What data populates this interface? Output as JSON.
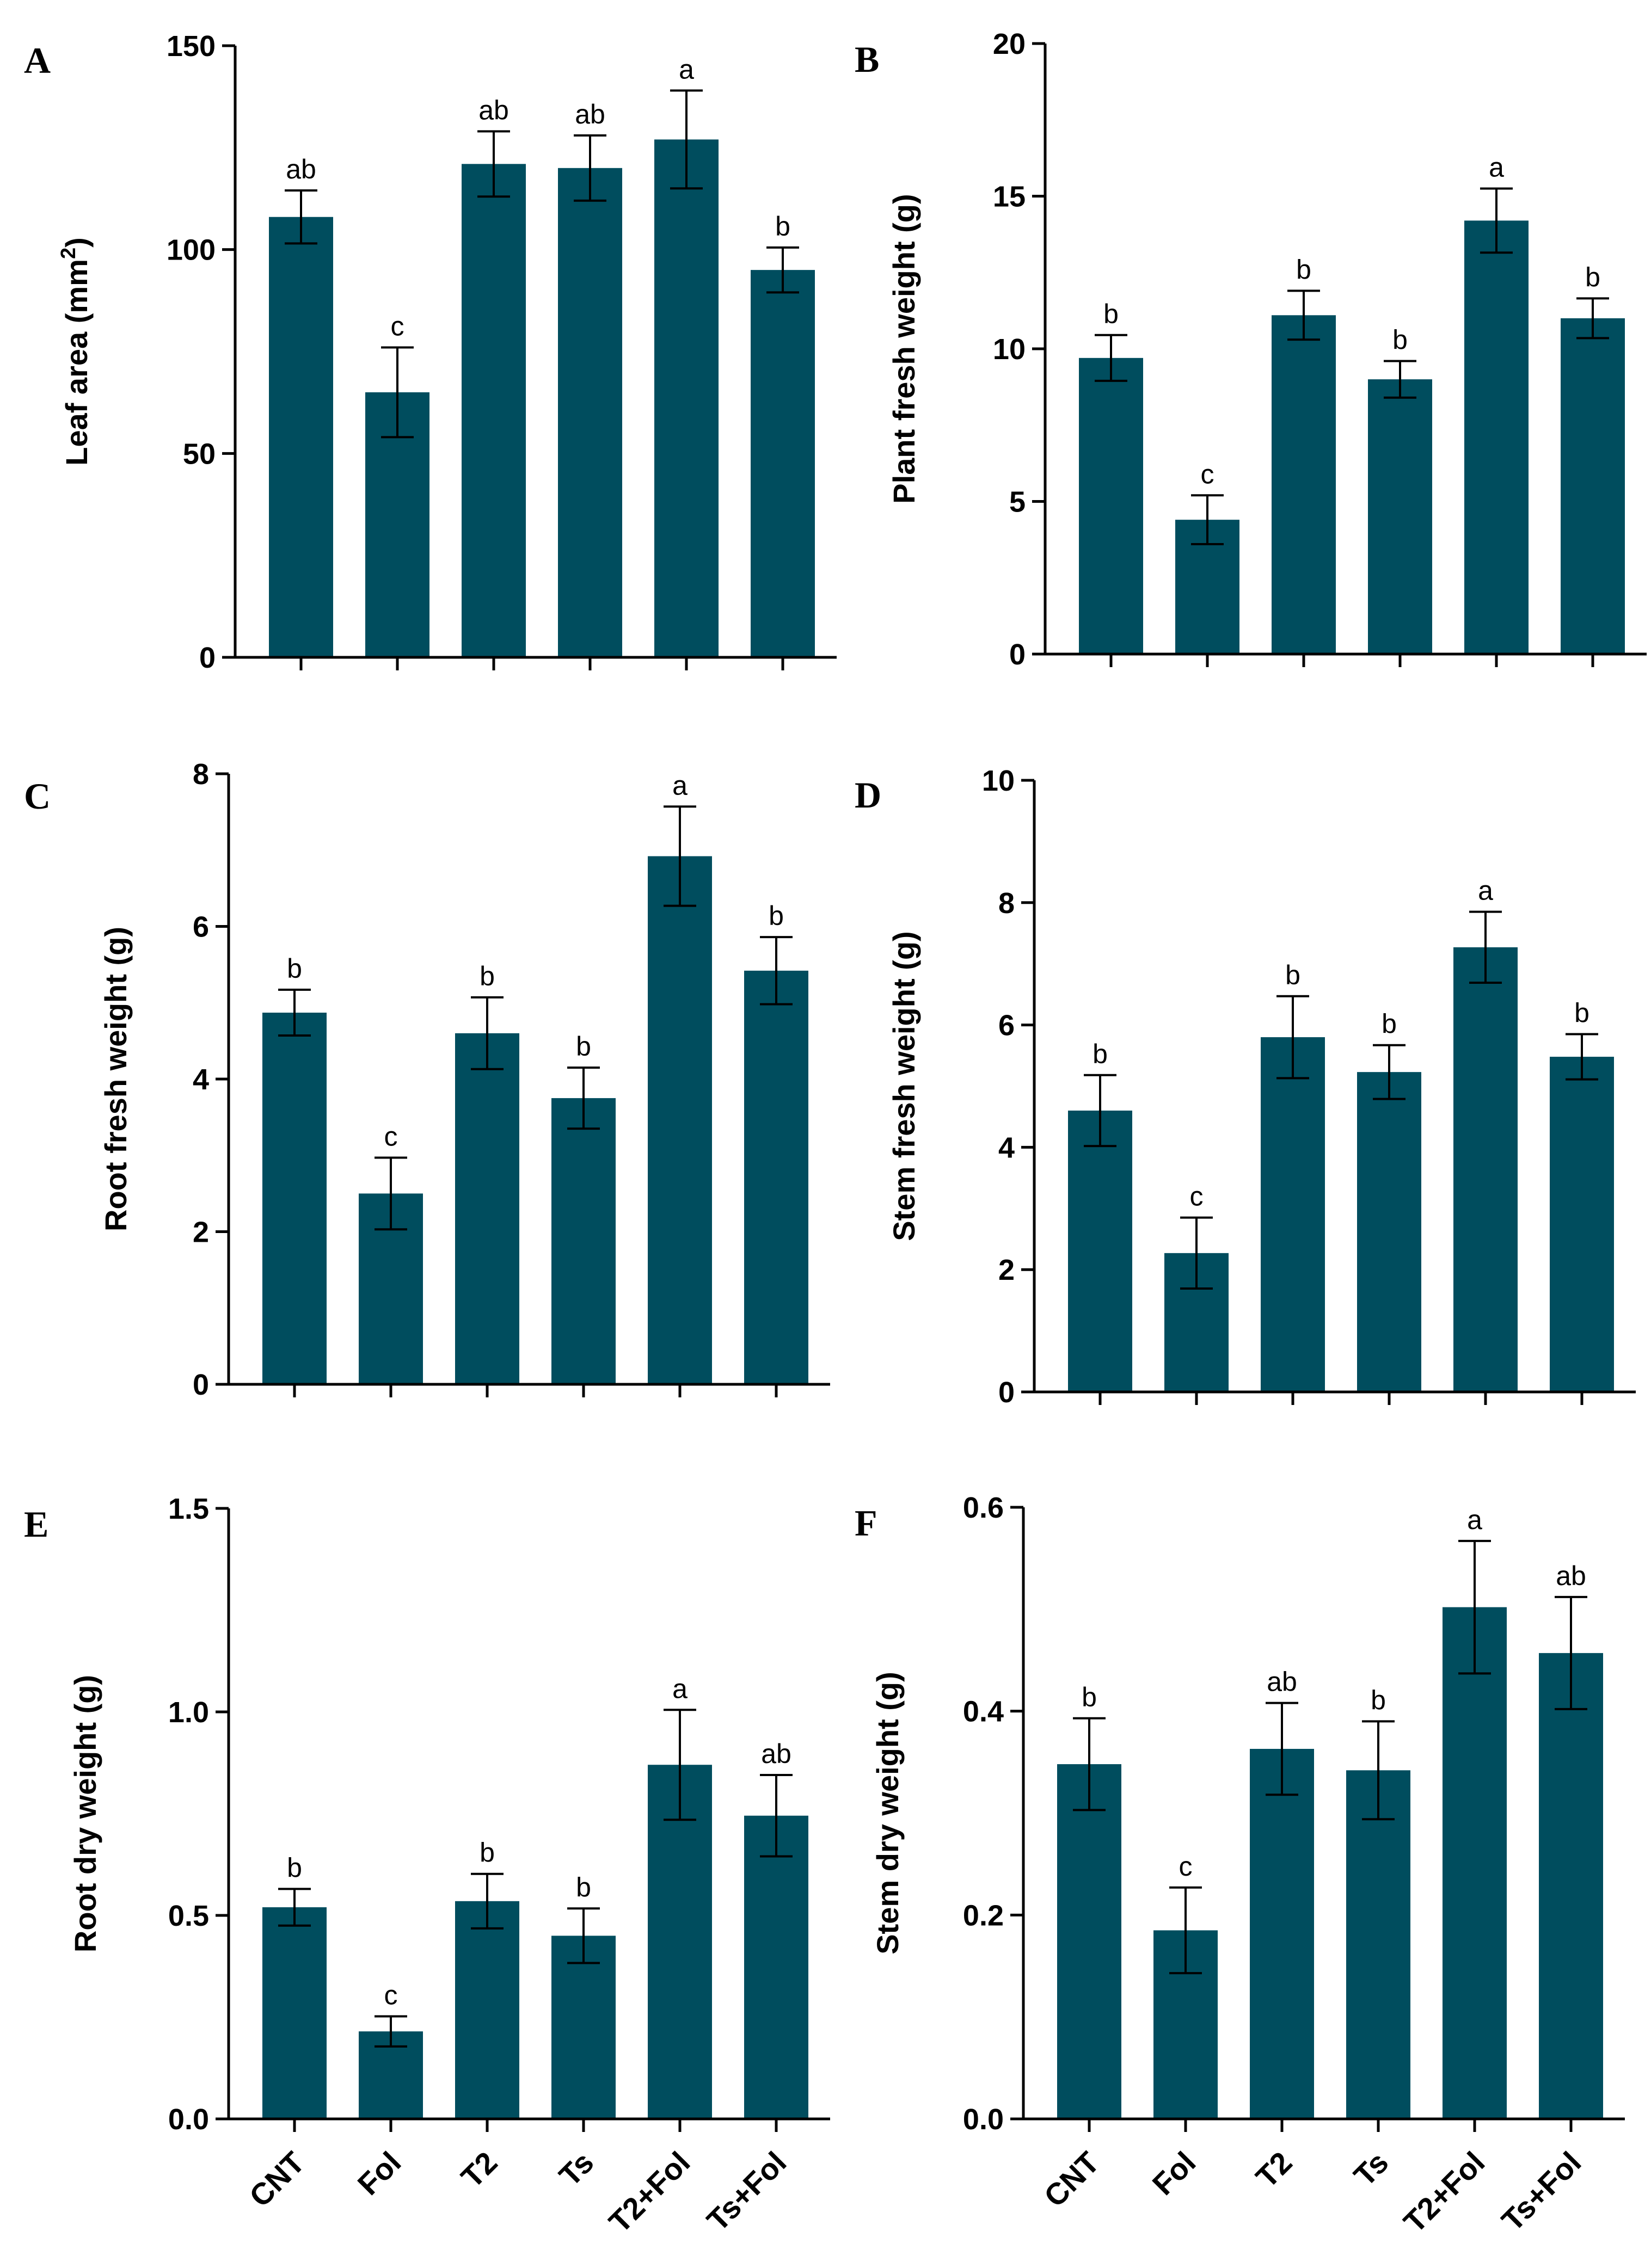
{
  "chart_data": [
    {
      "type": "bar",
      "panel": "A",
      "ylabel_main": "Leaf area (mm",
      "ylabel_sup": "2",
      "ylabel_tail": ")",
      "ylim": [
        0,
        150
      ],
      "yticks": [
        0,
        50,
        100,
        150
      ],
      "ytick_labels": [
        "0",
        "50",
        "100",
        "150"
      ],
      "categories": [
        "CNT",
        "Fol",
        "T2",
        "Ts",
        "T2+Fol",
        "Ts+Fol"
      ],
      "values": [
        108,
        65,
        121,
        120,
        127,
        95
      ],
      "errors": [
        6.5,
        11,
        8,
        8,
        12,
        5.5
      ],
      "sig_letters": [
        "ab",
        "c",
        "ab",
        "ab",
        "a",
        "b"
      ],
      "show_category_labels": false,
      "color": "#004d5e"
    },
    {
      "type": "bar",
      "panel": "B",
      "ylabel_main": "Plant fresh weight (g)",
      "ylabel_sup": "",
      "ylabel_tail": "",
      "ylim": [
        0,
        20
      ],
      "yticks": [
        0,
        5,
        10,
        15,
        20
      ],
      "ytick_labels": [
        "0",
        "5",
        "10",
        "15",
        "20"
      ],
      "categories": [
        "CNT",
        "Fol",
        "T2",
        "Ts",
        "T2+Fol",
        "Ts+Fol"
      ],
      "values": [
        9.7,
        4.4,
        11.1,
        9.0,
        14.2,
        11.0
      ],
      "errors": [
        0.75,
        0.8,
        0.8,
        0.6,
        1.05,
        0.65
      ],
      "sig_letters": [
        "b",
        "c",
        "b",
        "b",
        "a",
        "b"
      ],
      "show_category_labels": false,
      "color": "#004d5e"
    },
    {
      "type": "bar",
      "panel": "C",
      "ylabel_main": "Root fresh weight (g)",
      "ylabel_sup": "",
      "ylabel_tail": "",
      "ylim": [
        0,
        8
      ],
      "yticks": [
        0,
        2,
        4,
        6,
        8
      ],
      "ytick_labels": [
        "0",
        "2",
        "4",
        "6",
        "8"
      ],
      "categories": [
        "CNT",
        "Fol",
        "T2",
        "Ts",
        "T2+Fol",
        "Ts+Fol"
      ],
      "values": [
        4.87,
        2.5,
        4.6,
        3.75,
        6.92,
        5.42
      ],
      "errors": [
        0.3,
        0.47,
        0.47,
        0.4,
        0.65,
        0.44
      ],
      "sig_letters": [
        "b",
        "c",
        "b",
        "b",
        "a",
        "b"
      ],
      "show_category_labels": false,
      "color": "#004d5e"
    },
    {
      "type": "bar",
      "panel": "D",
      "ylabel_main": "Stem fresh weight  (g)",
      "ylabel_sup": "",
      "ylabel_tail": "",
      "ylim": [
        0,
        10
      ],
      "yticks": [
        0,
        2,
        4,
        6,
        8,
        10
      ],
      "ytick_labels": [
        "0",
        "2",
        "4",
        "6",
        "8",
        "10"
      ],
      "categories": [
        "CNT",
        "Fol",
        "T2",
        "Ts",
        "T2+Fol",
        "Ts+Fol"
      ],
      "values": [
        4.6,
        2.27,
        5.8,
        5.23,
        7.27,
        5.48
      ],
      "errors": [
        0.58,
        0.58,
        0.67,
        0.44,
        0.58,
        0.37
      ],
      "sig_letters": [
        "b",
        "c",
        "b",
        "b",
        "a",
        "b"
      ],
      "show_category_labels": false,
      "color": "#004d5e"
    },
    {
      "type": "bar",
      "panel": "E",
      "ylabel_main": "Root dry weight (g)",
      "ylabel_sup": "",
      "ylabel_tail": "",
      "ylim": [
        0,
        1.5
      ],
      "yticks": [
        0,
        0.5,
        1.0,
        1.5
      ],
      "ytick_labels": [
        "0.0",
        "0.5",
        "1.0",
        "1.5"
      ],
      "categories": [
        "CNT",
        "Fol",
        "T2",
        "Ts",
        "T2+Fol",
        "Ts+Fol"
      ],
      "values": [
        0.52,
        0.215,
        0.535,
        0.45,
        0.87,
        0.745
      ],
      "errors": [
        0.045,
        0.037,
        0.067,
        0.067,
        0.135,
        0.1
      ],
      "sig_letters": [
        "b",
        "c",
        "b",
        "b",
        "a",
        "ab"
      ],
      "show_category_labels": true,
      "color": "#004d5e"
    },
    {
      "type": "bar",
      "panel": "F",
      "ylabel_main": "Stem dry weight (g)",
      "ylabel_sup": "",
      "ylabel_tail": "",
      "ylim": [
        0,
        0.6
      ],
      "yticks": [
        0,
        0.2,
        0.4,
        0.6
      ],
      "ytick_labels": [
        "0.0",
        "0.2",
        "0.4",
        "0.6"
      ],
      "categories": [
        "CNT",
        "Fol",
        "T2",
        "Ts",
        "T2+Fol",
        "Ts+Fol"
      ],
      "values": [
        0.348,
        0.185,
        0.363,
        0.342,
        0.502,
        0.457
      ],
      "errors": [
        0.045,
        0.042,
        0.045,
        0.048,
        0.065,
        0.055
      ],
      "sig_letters": [
        "b",
        "c",
        "ab",
        "b",
        "a",
        "ab"
      ],
      "show_category_labels": true,
      "color": "#004d5e"
    }
  ]
}
